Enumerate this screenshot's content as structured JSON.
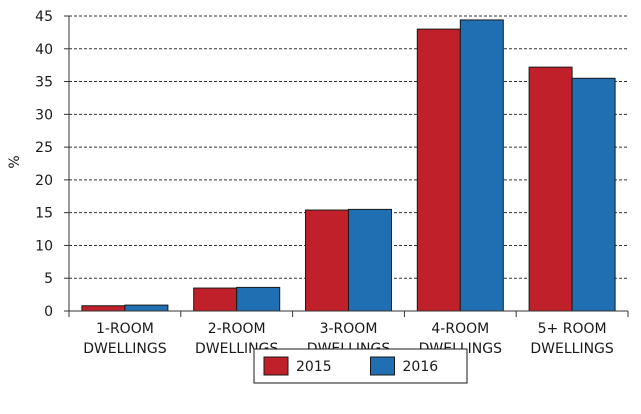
{
  "chart_data": {
    "type": "bar",
    "ylabel": "%",
    "xlabel": "",
    "ylim": [
      0,
      45
    ],
    "yticks": [
      0,
      5,
      10,
      15,
      20,
      25,
      30,
      35,
      40,
      45
    ],
    "grid": "horizontal-dashed",
    "legend_position": "bottom-center",
    "categories": [
      [
        "1-ROOM",
        "DWELLINGS"
      ],
      [
        "2-ROOM",
        "DWELLINGS"
      ],
      [
        "3-ROOM",
        "DWELLINGS"
      ],
      [
        "4-ROOM",
        "DWELLINGS"
      ],
      [
        "5+ ROOM",
        "DWELLINGS"
      ]
    ],
    "series": [
      {
        "name": "2015",
        "color": "#c0202a",
        "values": [
          0.8,
          3.5,
          15.4,
          43.0,
          37.2
        ]
      },
      {
        "name": "2016",
        "color": "#1f6fb2",
        "values": [
          0.9,
          3.6,
          15.5,
          44.4,
          35.5
        ]
      }
    ]
  }
}
